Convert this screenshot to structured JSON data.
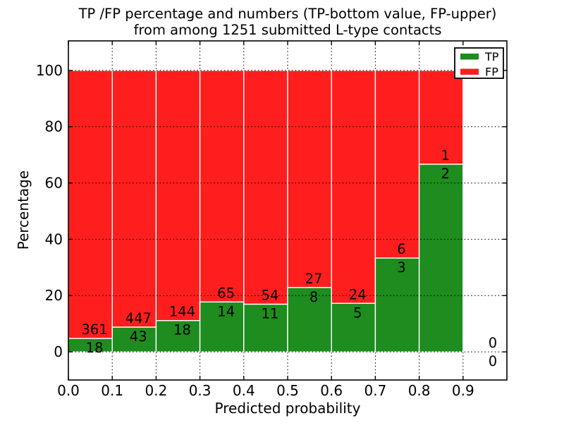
{
  "title": {
    "line1": "TP /FP percentage and numbers (TP-bottom value, FP-upper)",
    "line2": "from among 1251 submitted L-type contacts"
  },
  "axes": {
    "x_label": "Predicted probability",
    "y_label": "Percentage",
    "x_tick_labels": [
      "0.0",
      "0.1",
      "0.2",
      "0.3",
      "0.4",
      "0.5",
      "0.6",
      "0.7",
      "0.8",
      "0.9"
    ],
    "x_tick_values": [
      0.0,
      0.1,
      0.2,
      0.3,
      0.4,
      0.5,
      0.6,
      0.7,
      0.8,
      0.9
    ],
    "y_tick_labels": [
      "0",
      "20",
      "40",
      "60",
      "80",
      "100"
    ],
    "y_tick_values": [
      0,
      20,
      40,
      60,
      80,
      100
    ],
    "x_range": [
      0.0,
      1.0
    ],
    "y_range_pct": [
      -10,
      110.5
    ]
  },
  "legend": {
    "items": [
      {
        "label": "TP",
        "color": "#1e8c1e"
      },
      {
        "label": "FP",
        "color": "#ff1e1e"
      }
    ]
  },
  "colors": {
    "tp": "#1e8c1e",
    "fp": "#ff1e1e",
    "bar_edge": "#ffffff",
    "grid": "#000000",
    "spine": "#000000",
    "background": "#ffffff"
  },
  "chart_data": {
    "type": "bar",
    "stacked": true,
    "normalized_to_percent": 100,
    "total_contacts": 1251,
    "title": "TP /FP percentage and numbers (TP-bottom value, FP-upper) from among 1251 submitted L-type contacts",
    "xlabel": "Predicted probability",
    "ylabel": "Percentage",
    "grid": "dotted",
    "legend_position": "upper right",
    "bin_width": 0.1,
    "categories": [
      "0.0-0.1",
      "0.1-0.2",
      "0.2-0.3",
      "0.3-0.4",
      "0.4-0.5",
      "0.5-0.6",
      "0.6-0.7",
      "0.7-0.8",
      "0.8-0.9",
      "0.9-1.0"
    ],
    "series": [
      {
        "name": "TP",
        "counts": [
          18,
          43,
          18,
          14,
          11,
          8,
          5,
          3,
          2,
          0
        ]
      },
      {
        "name": "FP",
        "counts": [
          361,
          447,
          144,
          65,
          54,
          27,
          24,
          6,
          1,
          0
        ]
      }
    ],
    "tp_percent": [
      4.75,
      8.78,
      11.11,
      17.72,
      16.92,
      22.86,
      17.24,
      33.33,
      66.67,
      0
    ],
    "fp_percent": [
      95.25,
      91.22,
      88.89,
      82.28,
      83.08,
      77.14,
      82.76,
      66.67,
      33.33,
      0
    ]
  }
}
